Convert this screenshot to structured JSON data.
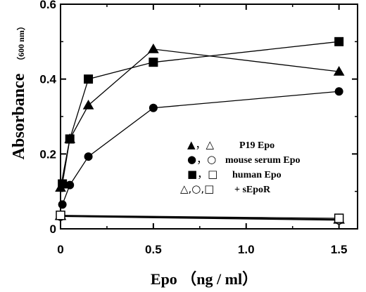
{
  "chart_data": {
    "type": "line",
    "xlabel": "Epo （ng / ml）",
    "ylabel": "Absorbance",
    "ylabel_unit": "（600 nm）",
    "xlim": [
      0,
      1.6
    ],
    "ylim": [
      0,
      0.6
    ],
    "x_ticks": [
      "0",
      "0.5",
      "1.0",
      "1.5"
    ],
    "y_ticks": [
      "0",
      "0.2",
      "0.4",
      "0.6"
    ],
    "grid": false,
    "legend_position": "center-right",
    "series": [
      {
        "name": "P19 Epo",
        "marker": "triangle",
        "filled": true,
        "points": [
          [
            0,
            0.11
          ],
          [
            0.05,
            0.24
          ],
          [
            0.15,
            0.33
          ],
          [
            0.5,
            0.48
          ],
          [
            1.5,
            0.42
          ]
        ]
      },
      {
        "name": "mouse serum Epo",
        "marker": "circle",
        "filled": true,
        "points": [
          [
            0.01,
            0.065
          ],
          [
            0.05,
            0.117
          ],
          [
            0.15,
            0.193
          ],
          [
            0.5,
            0.323
          ],
          [
            1.5,
            0.367
          ]
        ]
      },
      {
        "name": "human Epo",
        "marker": "square",
        "filled": true,
        "points": [
          [
            0.01,
            0.12
          ],
          [
            0.05,
            0.24
          ],
          [
            0.15,
            0.4
          ],
          [
            0.5,
            0.445
          ],
          [
            1.5,
            0.5
          ]
        ]
      },
      {
        "name": "+ sEpoR (P19 Epo)",
        "marker": "triangle",
        "filled": false,
        "points": [
          [
            0,
            0.035
          ],
          [
            1.5,
            0.025
          ]
        ]
      },
      {
        "name": "+ sEpoR (mouse serum Epo)",
        "marker": "circle",
        "filled": false,
        "points": [
          [
            0,
            0.033
          ],
          [
            1.5,
            0.023
          ]
        ]
      },
      {
        "name": "+ sEpoR (human Epo)",
        "marker": "square",
        "filled": false,
        "points": [
          [
            0,
            0.036
          ],
          [
            1.5,
            0.028
          ]
        ]
      }
    ],
    "legend": [
      {
        "symbols": "▲，△",
        "label": "P19 Epo"
      },
      {
        "symbols": "●，○",
        "label": "mouse serum Epo"
      },
      {
        "symbols": "■，□",
        "label": "human Epo"
      },
      {
        "symbols": "△,○,□",
        "label": "+ sEpoR"
      }
    ]
  }
}
